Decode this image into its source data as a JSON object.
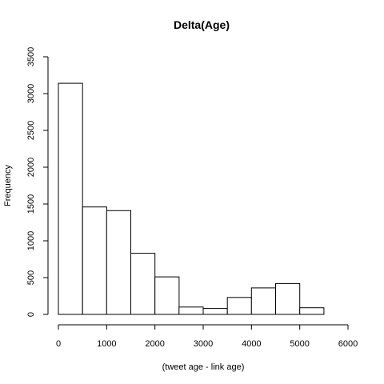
{
  "chart_data": {
    "type": "bar",
    "title": "Delta(Age)",
    "xlabel": "(tweet age - link age)",
    "ylabel": "Frequency",
    "xlim": [
      0,
      6000
    ],
    "ylim": [
      0,
      3500
    ],
    "xticks": [
      0,
      1000,
      2000,
      3000,
      4000,
      5000,
      6000
    ],
    "yticks": [
      0,
      500,
      1000,
      1500,
      2000,
      2500,
      3000,
      3500
    ],
    "grid": false,
    "bins": [
      {
        "x0": 0,
        "x1": 500,
        "value": 3140
      },
      {
        "x0": 500,
        "x1": 1000,
        "value": 1460
      },
      {
        "x0": 1000,
        "x1": 1500,
        "value": 1410
      },
      {
        "x0": 1500,
        "x1": 2000,
        "value": 830
      },
      {
        "x0": 2000,
        "x1": 2500,
        "value": 510
      },
      {
        "x0": 2500,
        "x1": 3000,
        "value": 100
      },
      {
        "x0": 3000,
        "x1": 3500,
        "value": 80
      },
      {
        "x0": 3500,
        "x1": 4000,
        "value": 230
      },
      {
        "x0": 4000,
        "x1": 4500,
        "value": 360
      },
      {
        "x0": 4500,
        "x1": 5000,
        "value": 420
      },
      {
        "x0": 5000,
        "x1": 5500,
        "value": 90
      }
    ]
  }
}
